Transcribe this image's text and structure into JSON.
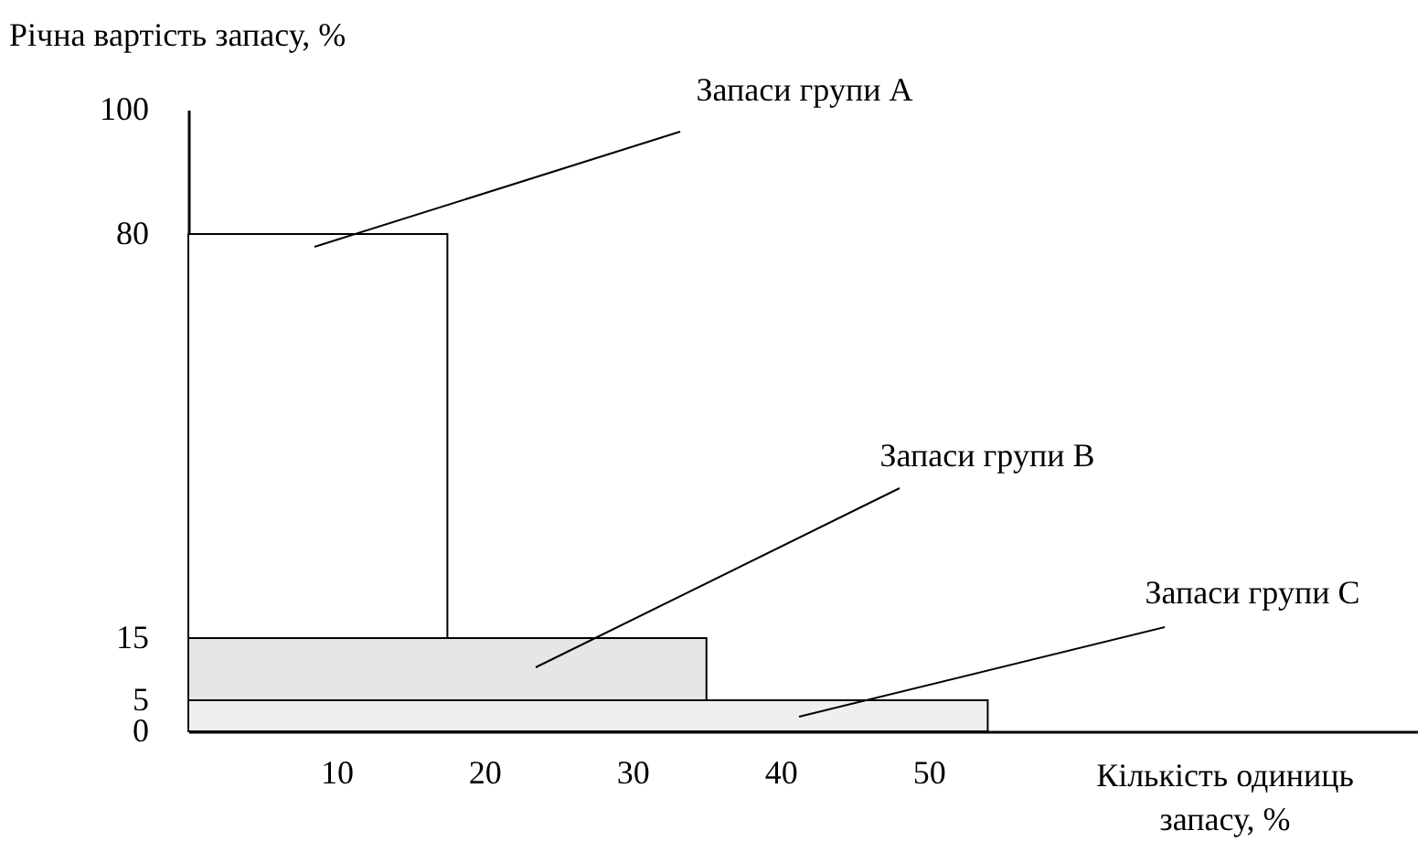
{
  "chart_data": {
    "type": "area",
    "xlabel": "Кількість одиниць запасу, %",
    "ylabel": "Річна вартість запасу, %",
    "xlim": [
      0,
      83
    ],
    "ylim": [
      0,
      100
    ],
    "xticks": [
      10,
      20,
      30,
      40,
      50
    ],
    "yticks": [
      0,
      5,
      15,
      80,
      100
    ],
    "grid": false,
    "series": [
      {
        "name": "Запаси групи А",
        "color": "#ffffff",
        "x": [
          0,
          17.5
        ],
        "values": [
          80,
          80
        ]
      },
      {
        "name": "Запаси групи В",
        "color": "#e6e6e6",
        "x": [
          0,
          35
        ],
        "values": [
          15,
          15
        ]
      },
      {
        "name": "Запаси групи С",
        "color": "#efefef",
        "x": [
          0,
          54
        ],
        "values": [
          5,
          5
        ]
      }
    ]
  }
}
